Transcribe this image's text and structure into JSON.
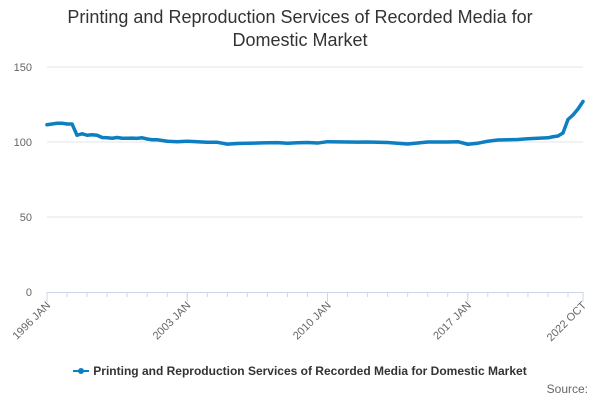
{
  "chart_data": {
    "type": "line",
    "title": [
      "Printing and Reproduction Services of Recorded Media for",
      "Domestic Market"
    ],
    "xlabel": "",
    "ylabel": "",
    "ylim": [
      0,
      150
    ],
    "y_ticks": [
      0,
      50,
      100,
      150
    ],
    "x_tick_labels": [
      {
        "label": "1996 JAN",
        "x": 1996.0
      },
      {
        "label": "2003 JAN",
        "x": 2003.0
      },
      {
        "label": "2010 JAN",
        "x": 2010.0
      },
      {
        "label": "2017 JAN",
        "x": 2017.0
      },
      {
        "label": "2022 OCT",
        "x": 2022.75
      }
    ],
    "xlim": [
      1996.0,
      2022.75
    ],
    "grid": true,
    "legend": "bottom",
    "series": [
      {
        "name": "Printing and Reproduction Services of Recorded Media for Domestic Market",
        "color": "#0d7fc1",
        "x": [
          1996.0,
          1996.25,
          1996.5,
          1996.75,
          1997.0,
          1997.25,
          1997.5,
          1997.75,
          1998.0,
          1998.25,
          1998.5,
          1998.75,
          1999.0,
          1999.25,
          1999.5,
          1999.75,
          2000.0,
          2000.25,
          2000.5,
          2000.75,
          2001.0,
          2001.25,
          2001.5,
          2001.75,
          2002.0,
          2002.5,
          2003.0,
          2003.5,
          2004.0,
          2004.5,
          2005.0,
          2005.5,
          2006.0,
          2006.5,
          2007.0,
          2007.5,
          2008.0,
          2008.5,
          2009.0,
          2009.5,
          2010.0,
          2010.5,
          2011.0,
          2011.5,
          2012.0,
          2012.5,
          2013.0,
          2013.5,
          2014.0,
          2014.5,
          2015.0,
          2015.5,
          2016.0,
          2016.5,
          2017.0,
          2017.5,
          2018.0,
          2018.5,
          2019.0,
          2019.5,
          2020.0,
          2020.5,
          2021.0,
          2021.25,
          2021.5,
          2021.75,
          2022.0,
          2022.25,
          2022.5,
          2022.75
        ],
        "values": [
          111.5,
          112,
          112.5,
          112.5,
          112,
          112,
          104.5,
          105.5,
          104.5,
          104.8,
          104.5,
          103,
          102.8,
          102.5,
          103,
          102.5,
          102.5,
          102.6,
          102.4,
          102.8,
          102,
          101.5,
          101.5,
          101,
          100.5,
          100.2,
          100.5,
          100.2,
          99.8,
          99.8,
          98.6,
          99,
          99.2,
          99.3,
          99.5,
          99.6,
          99.2,
          99.5,
          99.7,
          99.3,
          100.2,
          100.1,
          100,
          99.9,
          100,
          99.8,
          99.7,
          99.2,
          98.7,
          99.3,
          100,
          100,
          100,
          100.2,
          98.5,
          99.2,
          100.5,
          101.3,
          101.5,
          101.7,
          102.2,
          102.5,
          102.8,
          103.5,
          104,
          106,
          115,
          118,
          122,
          127
        ]
      }
    ],
    "source_label": "Source:"
  }
}
